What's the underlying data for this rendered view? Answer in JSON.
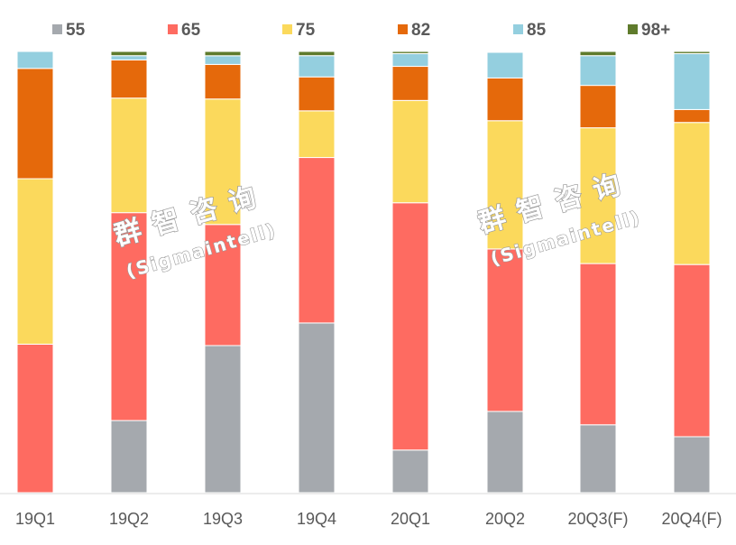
{
  "chart_data": {
    "type": "bar",
    "stacked": true,
    "normalized_percent": true,
    "title": "",
    "xlabel": "",
    "ylabel": "",
    "ylim": [
      0,
      100
    ],
    "grid": false,
    "legend_position": "top",
    "categories": [
      "19Q1",
      "19Q2",
      "19Q3",
      "19Q4",
      "20Q1",
      "20Q2",
      "20Q3(F)",
      "20Q4(F)"
    ],
    "series": [
      {
        "name": "55",
        "color": "#a5a9ae",
        "values": [
          0,
          17,
          34,
          40,
          10,
          19,
          16,
          13
        ]
      },
      {
        "name": "65",
        "color": "#fe6b61",
        "values": [
          35,
          49,
          28,
          39,
          58,
          38,
          38,
          40
        ]
      },
      {
        "name": "75",
        "color": "#fbd95c",
        "values": [
          39,
          27,
          29,
          11,
          24,
          30,
          32,
          33
        ]
      },
      {
        "name": "82",
        "color": "#e5690b",
        "values": [
          26,
          9,
          8,
          8,
          8,
          10,
          10,
          3
        ]
      },
      {
        "name": "85",
        "color": "#94cfdf",
        "values": [
          4,
          1,
          2,
          5,
          3,
          6,
          7,
          13
        ]
      },
      {
        "name": "98+",
        "color": "#5f7b2c",
        "values": [
          0,
          1,
          1,
          1,
          0.5,
          0.2,
          1,
          0.5
        ]
      }
    ]
  },
  "watermarks": [
    {
      "cn": "群智咨询",
      "en": "(Sigmaintell)"
    },
    {
      "cn": "群智咨询",
      "en": "(Sigmaintell)"
    }
  ]
}
